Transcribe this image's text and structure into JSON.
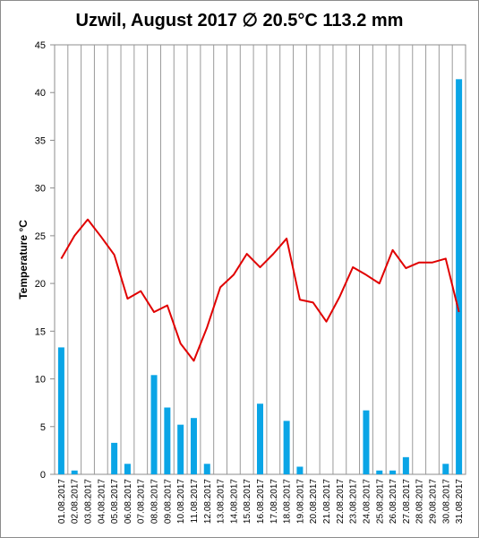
{
  "chart_data": {
    "type": "bar+line",
    "title": "Uzwil, August 2017 ∅ 20.5°C 113.2 mm",
    "ylabel": "Temperature °C",
    "ylim": [
      0,
      45
    ],
    "yticks": [
      "0",
      "5",
      "10",
      "15",
      "20",
      "25",
      "30",
      "35",
      "40",
      "45"
    ],
    "grid": "vertical",
    "categories": [
      "01.08.2017",
      "02.08.2017",
      "03.08.2017",
      "04.08.2017",
      "05.08.2017",
      "06.08.2017",
      "07.08.2017",
      "08.08.2017",
      "09.08.2017",
      "10.08.2017",
      "11.08.2017",
      "12.08.2017",
      "13.08.2017",
      "14.08.2017",
      "15.08.2017",
      "16.08.2017",
      "17.08.2017",
      "18.08.2017",
      "19.08.2017",
      "20.08.2017",
      "21.08.2017",
      "22.08.2017",
      "23.08.2017",
      "24.08.2017",
      "25.08.2017",
      "26.08.2017",
      "27.08.2017",
      "28.08.2017",
      "29.08.2017",
      "30.08.2017",
      "31.08.2017"
    ],
    "series": [
      {
        "kind": "bar",
        "color": "#0aa5e6",
        "values": [
          13.3,
          0.4,
          0,
          0,
          3.3,
          1.1,
          0,
          10.4,
          7.0,
          5.2,
          5.9,
          1.1,
          0,
          0,
          0,
          7.4,
          0,
          5.6,
          0.8,
          0,
          0,
          0,
          0,
          6.7,
          0.4,
          0.4,
          1.8,
          0,
          0,
          1.1,
          41.4
        ]
      },
      {
        "kind": "line",
        "color": "#e00000",
        "values": [
          22.6,
          25.0,
          26.7,
          24.9,
          23.0,
          18.4,
          19.2,
          17.0,
          17.7,
          13.7,
          11.9,
          15.4,
          19.6,
          20.9,
          23.1,
          21.7,
          23.1,
          24.7,
          18.3,
          18.0,
          16.0,
          18.6,
          21.7,
          20.9,
          20.0,
          23.5,
          21.6,
          22.2,
          22.2,
          22.6,
          17.0
        ]
      }
    ]
  }
}
